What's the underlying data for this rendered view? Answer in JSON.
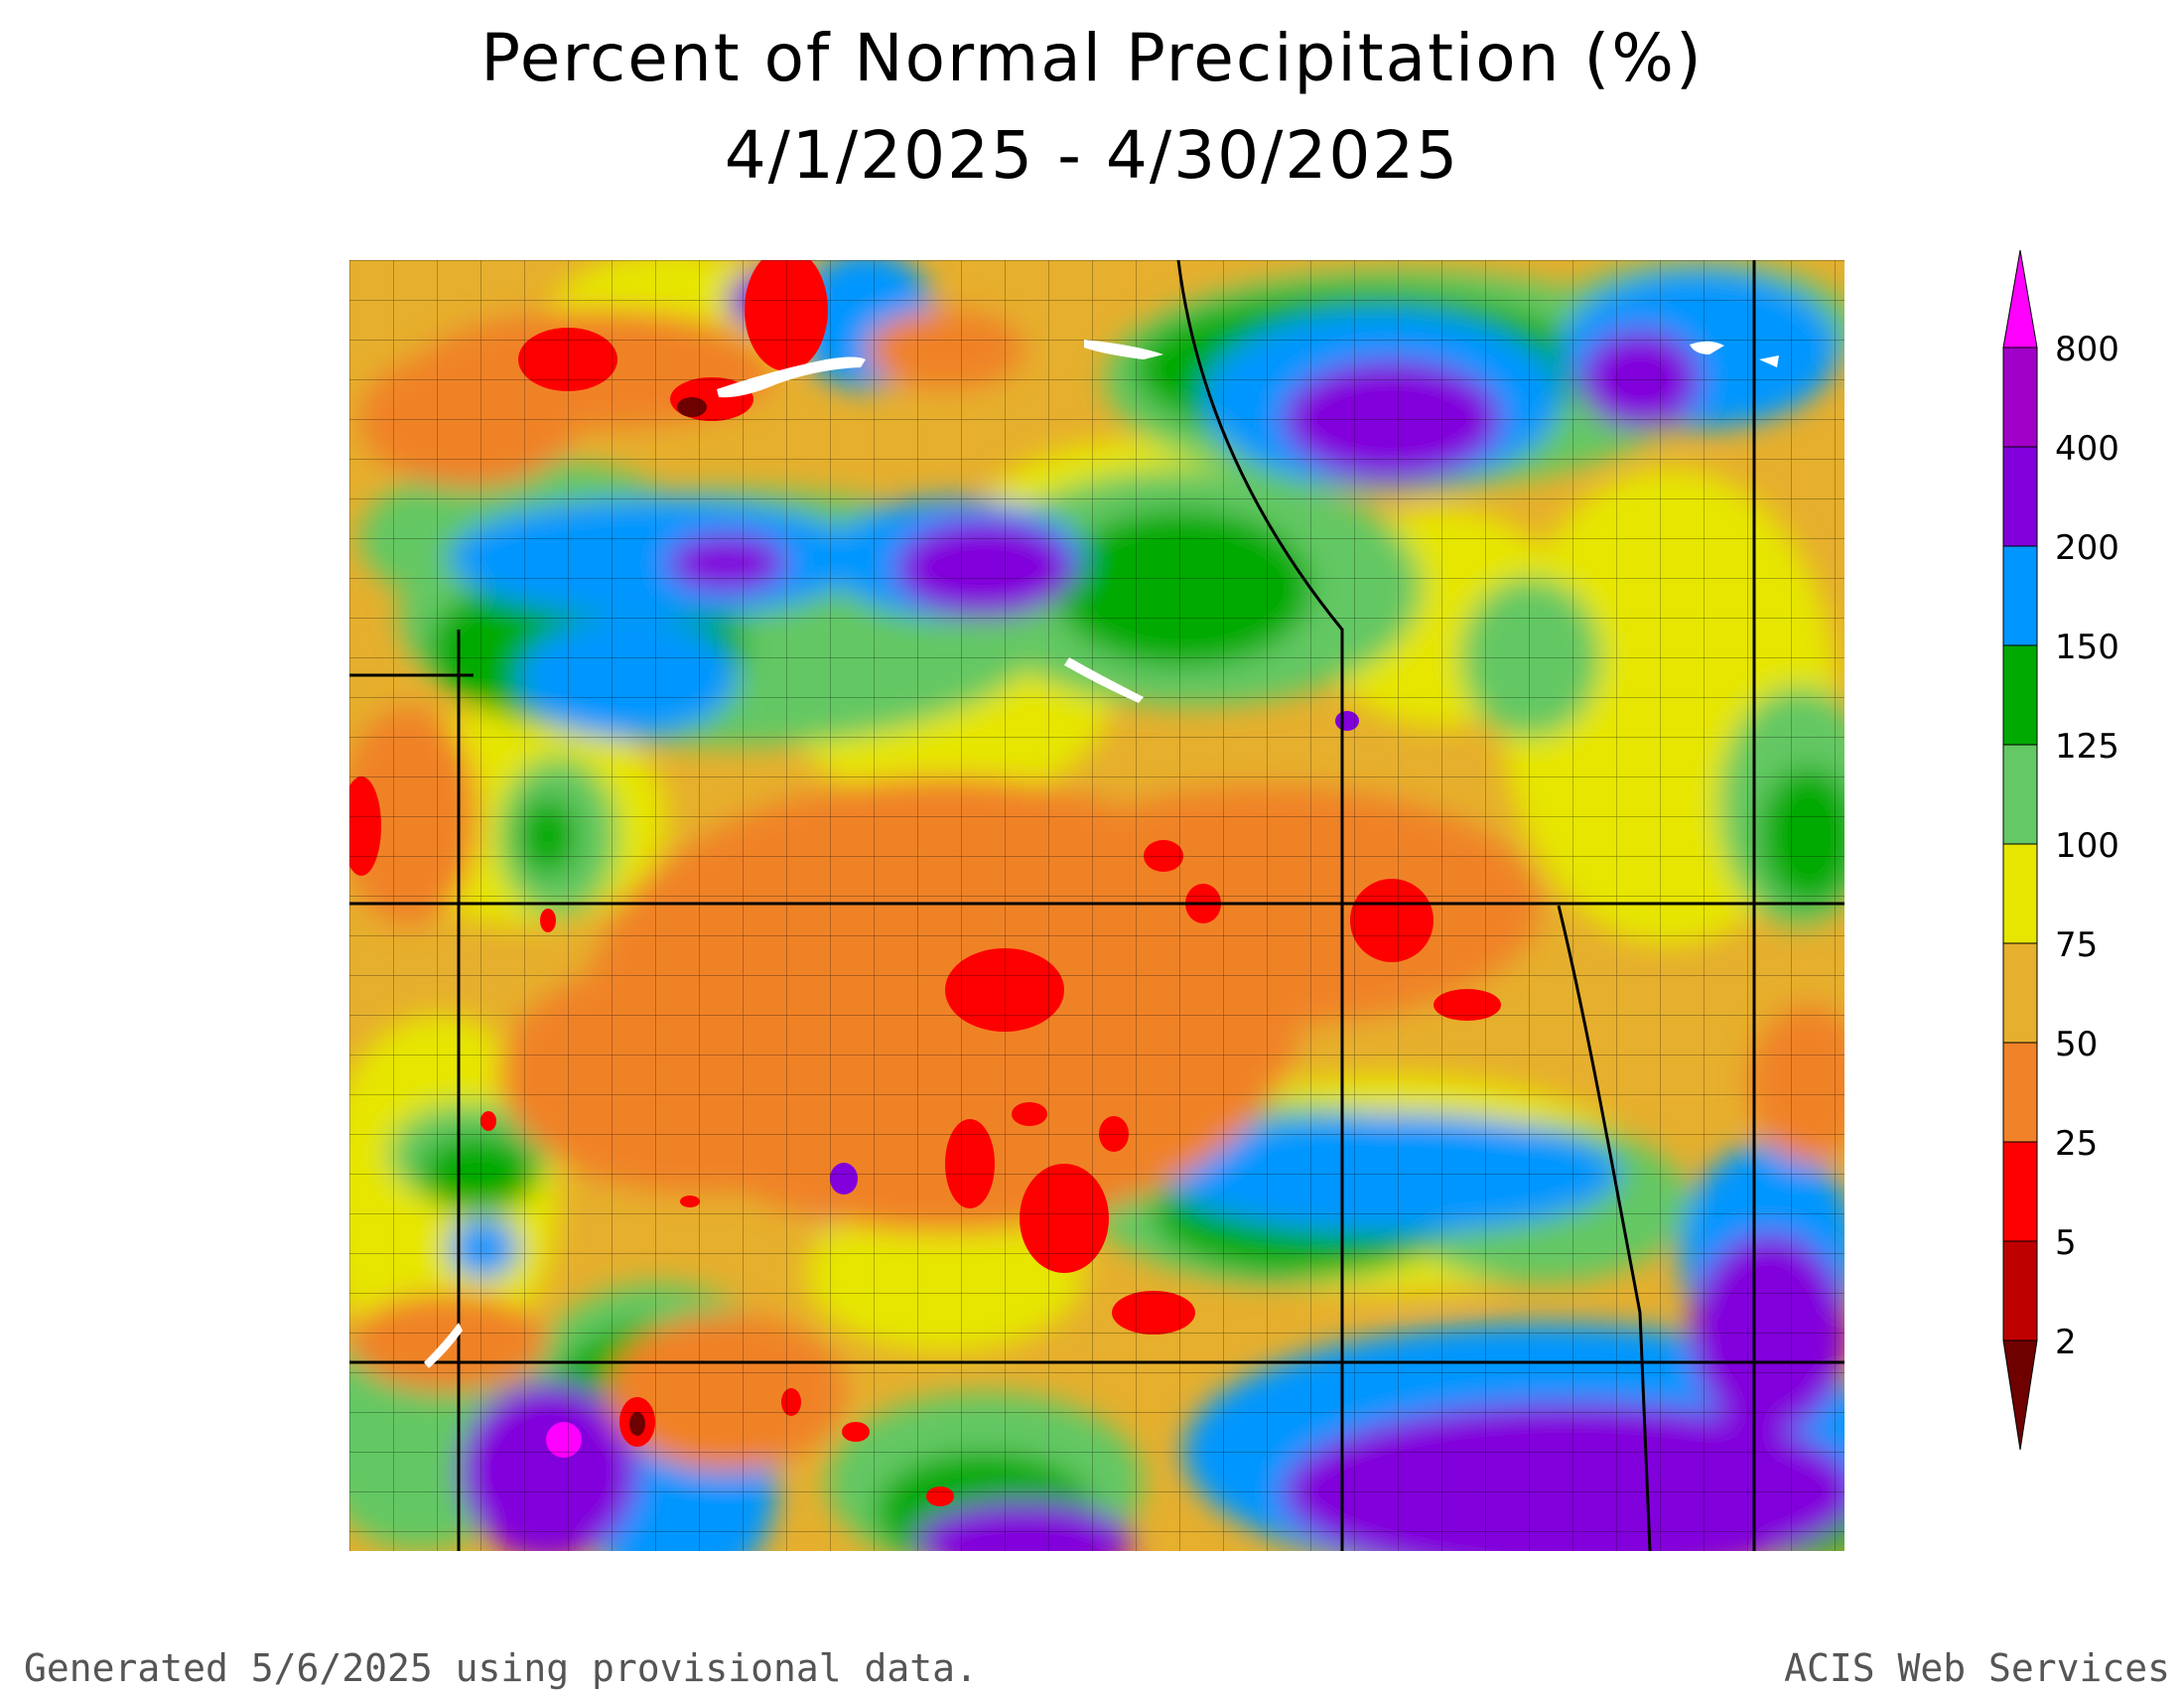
{
  "title": {
    "line1": "Percent of Normal Precipitation (%)",
    "line2": "4/1/2025 - 4/30/2025"
  },
  "legend": {
    "bins": [
      {
        "label": "2",
        "color": "#6e0000"
      },
      {
        "label": "5",
        "color": "#bf0000"
      },
      {
        "label": "25",
        "color": "#ff0000"
      },
      {
        "label": "50",
        "color": "#f08228"
      },
      {
        "label": "75",
        "color": "#e6af2d"
      },
      {
        "label": "100",
        "color": "#e6e600"
      },
      {
        "label": "125",
        "color": "#64c864"
      },
      {
        "label": "150",
        "color": "#00aa00"
      },
      {
        "label": "200",
        "color": "#0096ff"
      },
      {
        "label": "400",
        "color": "#8200dc"
      },
      {
        "label": "800",
        "color": "#a000c8"
      }
    ],
    "top_color": "#ff00ff"
  },
  "footer": {
    "left": "Generated 5/6/2025 using provisional data.",
    "right": "ACIS Web Services"
  }
}
